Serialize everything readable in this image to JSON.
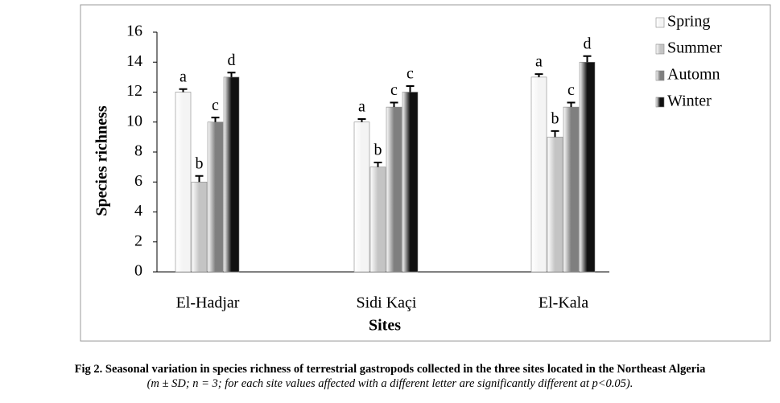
{
  "chart_data": {
    "type": "bar",
    "x_label": "Sites",
    "y_label": "Species richness",
    "categories": [
      "El-Hadjar",
      "Sidi Kaçi",
      "El-Kala"
    ],
    "series": [
      {
        "name": "Spring",
        "color": "#f4f4f4",
        "values": [
          12,
          10,
          13
        ],
        "errors": [
          0.2,
          0.2,
          0.2
        ],
        "letters": [
          "a",
          "a",
          "a"
        ]
      },
      {
        "name": "Summer",
        "color": "#c4c4c4",
        "values": [
          6,
          7,
          9
        ],
        "errors": [
          0.4,
          0.3,
          0.4
        ],
        "letters": [
          "b",
          "b",
          "b"
        ]
      },
      {
        "name": "Automn",
        "color": "#7f7f7f",
        "values": [
          10,
          11,
          11
        ],
        "errors": [
          0.3,
          0.3,
          0.3
        ],
        "letters": [
          "c",
          "c",
          "c"
        ]
      },
      {
        "name": "Winter",
        "color": "#111111",
        "values": [
          13,
          12,
          14
        ],
        "errors": [
          0.3,
          0.4,
          0.4
        ],
        "letters": [
          "d",
          "c",
          "d"
        ]
      }
    ],
    "ylim": [
      0,
      16
    ],
    "yticks": [
      0,
      2,
      4,
      6,
      8,
      10,
      12,
      14,
      16
    ],
    "grid": false,
    "legend": "right"
  },
  "caption": {
    "title": "Fig 2. Seasonal variation in species richness of terrestrial gastropods collected in the three sites located in the Northeast Algeria",
    "note": "(m ± SD; n = 3; for each site values affected with a different letter are significantly different at p<0.05)."
  }
}
